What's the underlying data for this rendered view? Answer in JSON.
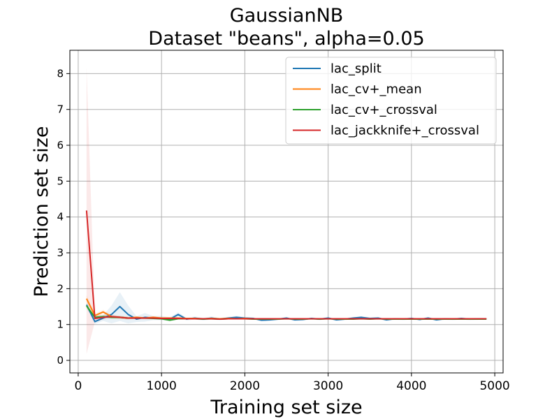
{
  "chart_data": {
    "type": "line",
    "title": "GaussianNB",
    "subtitle": "Dataset \"beans\", alpha=0.05",
    "xlabel": "Training set size",
    "ylabel": "Prediction set size",
    "xlim": [
      -100,
      5100
    ],
    "ylim": [
      -0.35,
      8.65
    ],
    "xticks": [
      0,
      1000,
      2000,
      3000,
      4000,
      5000
    ],
    "xtick_labels": [
      "0",
      "1000",
      "2000",
      "3000",
      "4000",
      "5000"
    ],
    "yticks": [
      0,
      1,
      2,
      3,
      4,
      5,
      6,
      7,
      8
    ],
    "ytick_labels": [
      "0",
      "1",
      "2",
      "3",
      "4",
      "5",
      "6",
      "7",
      "8"
    ],
    "grid": true,
    "legend_position": "upper-right",
    "series": [
      {
        "name": "lac_split",
        "color": "#1f77b4",
        "x": [
          100,
          200,
          300,
          400,
          500,
          600,
          700,
          800,
          900,
          1000,
          1100,
          1200,
          1300,
          1400,
          1500,
          1600,
          1700,
          1800,
          1900,
          2000,
          2100,
          2200,
          2300,
          2400,
          2500,
          2600,
          2700,
          2800,
          2900,
          3000,
          3100,
          3200,
          3300,
          3400,
          3500,
          3600,
          3700,
          3800,
          3900,
          4000,
          4100,
          4200,
          4300,
          4400,
          4500,
          4600,
          4700,
          4800,
          4900
        ],
        "y": [
          1.55,
          1.08,
          1.18,
          1.28,
          1.5,
          1.28,
          1.15,
          1.2,
          1.18,
          1.18,
          1.15,
          1.28,
          1.15,
          1.18,
          1.15,
          1.18,
          1.15,
          1.18,
          1.2,
          1.18,
          1.17,
          1.12,
          1.13,
          1.15,
          1.18,
          1.13,
          1.14,
          1.17,
          1.15,
          1.18,
          1.13,
          1.15,
          1.18,
          1.2,
          1.17,
          1.18,
          1.13,
          1.16,
          1.15,
          1.17,
          1.14,
          1.18,
          1.13,
          1.16,
          1.15,
          1.17,
          1.15,
          1.16,
          1.16
        ],
        "band": [
          0.06,
          0.06,
          0.08,
          0.25,
          0.4,
          0.25,
          0.08,
          0.12,
          0.06,
          0.06,
          0.05,
          0.06,
          0.04,
          0.04,
          0.04,
          0.04,
          0.03,
          0.03,
          0.04,
          0.03,
          0.03,
          0.03,
          0.03,
          0.03,
          0.03,
          0.03,
          0.03,
          0.03,
          0.03,
          0.03,
          0.03,
          0.03,
          0.03,
          0.03,
          0.03,
          0.03,
          0.03,
          0.03,
          0.03,
          0.03,
          0.03,
          0.03,
          0.03,
          0.03,
          0.03,
          0.03,
          0.03,
          0.03,
          0.03
        ]
      },
      {
        "name": "lac_cv+_mean",
        "color": "#ff7f0e",
        "x": [
          100,
          200,
          300,
          400,
          500,
          600,
          700,
          800,
          900,
          1000,
          1100,
          1200,
          1300,
          1400,
          1500,
          1600,
          1700,
          1800,
          1900,
          2000,
          2100,
          2200,
          2300,
          2400,
          2500,
          2600,
          2700,
          2800,
          2900,
          3000,
          3100,
          3200,
          3300,
          3400,
          3500,
          3600,
          3700,
          3800,
          3900,
          4000,
          4100,
          4200,
          4300,
          4400,
          4500,
          4600,
          4700,
          4800,
          4900
        ],
        "y": [
          1.72,
          1.25,
          1.35,
          1.22,
          1.2,
          1.18,
          1.2,
          1.18,
          1.2,
          1.18,
          1.18,
          1.18,
          1.17,
          1.17,
          1.16,
          1.17,
          1.16,
          1.17,
          1.16,
          1.17,
          1.16,
          1.16,
          1.16,
          1.16,
          1.16,
          1.16,
          1.16,
          1.16,
          1.16,
          1.16,
          1.16,
          1.16,
          1.16,
          1.16,
          1.16,
          1.16,
          1.16,
          1.16,
          1.16,
          1.16,
          1.16,
          1.16,
          1.16,
          1.16,
          1.16,
          1.16,
          1.16,
          1.16,
          1.16
        ],
        "band": [
          0.1,
          0.06,
          0.06,
          0.05,
          0.04,
          0.04,
          0.03,
          0.03,
          0.03,
          0.03,
          0.03,
          0.03,
          0.02,
          0.02,
          0.02,
          0.02,
          0.02,
          0.02,
          0.02,
          0.02,
          0.02,
          0.02,
          0.02,
          0.02,
          0.02,
          0.02,
          0.02,
          0.02,
          0.02,
          0.02,
          0.02,
          0.02,
          0.02,
          0.02,
          0.02,
          0.02,
          0.02,
          0.02,
          0.02,
          0.02,
          0.02,
          0.02,
          0.02,
          0.02,
          0.02,
          0.02,
          0.02,
          0.02,
          0.02
        ]
      },
      {
        "name": "lac_cv+_crossval",
        "color": "#2ca02c",
        "x": [
          100,
          200,
          300,
          400,
          500,
          600,
          700,
          800,
          900,
          1000,
          1100,
          1200,
          1300,
          1400,
          1500,
          1600,
          1700,
          1800,
          1900,
          2000,
          2100,
          2200,
          2300,
          2400,
          2500,
          2600,
          2700,
          2800,
          2900,
          3000,
          3100,
          3200,
          3300,
          3400,
          3500,
          3600,
          3700,
          3800,
          3900,
          4000,
          4100,
          4200,
          4300,
          4400,
          4500,
          4600,
          4700,
          4800,
          4900
        ],
        "y": [
          1.52,
          1.2,
          1.22,
          1.2,
          1.2,
          1.18,
          1.18,
          1.18,
          1.17,
          1.16,
          1.12,
          1.16,
          1.16,
          1.16,
          1.15,
          1.16,
          1.15,
          1.16,
          1.16,
          1.16,
          1.15,
          1.15,
          1.15,
          1.15,
          1.16,
          1.15,
          1.15,
          1.16,
          1.15,
          1.16,
          1.15,
          1.15,
          1.15,
          1.16,
          1.15,
          1.16,
          1.15,
          1.15,
          1.15,
          1.15,
          1.15,
          1.15,
          1.15,
          1.15,
          1.15,
          1.15,
          1.15,
          1.15,
          1.15
        ],
        "band": [
          0.08,
          0.05,
          0.05,
          0.04,
          0.04,
          0.03,
          0.03,
          0.03,
          0.03,
          0.03,
          0.03,
          0.02,
          0.02,
          0.02,
          0.02,
          0.02,
          0.02,
          0.02,
          0.02,
          0.02,
          0.02,
          0.02,
          0.02,
          0.02,
          0.02,
          0.02,
          0.02,
          0.02,
          0.02,
          0.02,
          0.02,
          0.02,
          0.02,
          0.02,
          0.02,
          0.02,
          0.02,
          0.02,
          0.02,
          0.02,
          0.02,
          0.02,
          0.02,
          0.02,
          0.02,
          0.02,
          0.02,
          0.02,
          0.02
        ]
      },
      {
        "name": "lac_jackknife+_crossval",
        "color": "#d62728",
        "x": [
          100,
          200,
          300,
          400,
          500,
          600,
          700,
          800,
          900,
          1000,
          1100,
          1200,
          1300,
          1400,
          1500,
          1600,
          1700,
          1800,
          1900,
          2000,
          2100,
          2200,
          2300,
          2400,
          2500,
          2600,
          2700,
          2800,
          2900,
          3000,
          3100,
          3200,
          3300,
          3400,
          3500,
          3600,
          3700,
          3800,
          3900,
          4000,
          4100,
          4200,
          4300,
          4400,
          4500,
          4600,
          4700,
          4800,
          4900
        ],
        "y": [
          4.18,
          1.17,
          1.2,
          1.22,
          1.2,
          1.18,
          1.18,
          1.18,
          1.18,
          1.17,
          1.17,
          1.17,
          1.16,
          1.16,
          1.16,
          1.16,
          1.15,
          1.16,
          1.16,
          1.16,
          1.16,
          1.16,
          1.16,
          1.16,
          1.16,
          1.16,
          1.16,
          1.16,
          1.16,
          1.16,
          1.16,
          1.16,
          1.16,
          1.16,
          1.16,
          1.16,
          1.16,
          1.16,
          1.16,
          1.16,
          1.16,
          1.16,
          1.16,
          1.16,
          1.16,
          1.16,
          1.16,
          1.16,
          1.16
        ],
        "band": [
          4.0,
          0.1,
          0.06,
          0.05,
          0.04,
          0.03,
          0.03,
          0.03,
          0.03,
          0.03,
          0.03,
          0.02,
          0.02,
          0.02,
          0.02,
          0.02,
          0.02,
          0.02,
          0.02,
          0.02,
          0.02,
          0.02,
          0.02,
          0.02,
          0.02,
          0.02,
          0.02,
          0.02,
          0.02,
          0.02,
          0.02,
          0.02,
          0.02,
          0.02,
          0.02,
          0.02,
          0.02,
          0.02,
          0.02,
          0.02,
          0.02,
          0.02,
          0.02,
          0.02,
          0.02,
          0.02,
          0.02,
          0.02,
          0.02
        ]
      }
    ]
  }
}
